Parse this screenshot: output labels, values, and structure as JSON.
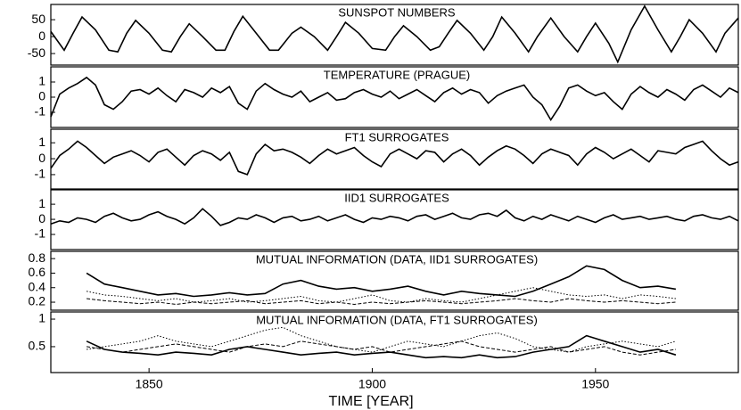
{
  "chart_data": [
    {
      "type": "line",
      "title": "SUNSPOT NUMBERS",
      "xlim": [
        1828,
        1982
      ],
      "ylim": [
        -84,
        95
      ],
      "yticks": [
        50,
        0,
        -50
      ],
      "x": [
        1828,
        1831,
        1833,
        1835,
        1838,
        1841,
        1843,
        1845,
        1847,
        1850,
        1853,
        1855,
        1857,
        1859,
        1862,
        1865,
        1867,
        1869,
        1871,
        1874,
        1877,
        1879,
        1882,
        1884,
        1887,
        1890,
        1892,
        1894,
        1897,
        1900,
        1903,
        1905,
        1907,
        1910,
        1913,
        1915,
        1917,
        1919,
        1922,
        1925,
        1927,
        1929,
        1932,
        1935,
        1937,
        1940,
        1943,
        1946,
        1948,
        1950,
        1953,
        1955,
        1958,
        1961,
        1964,
        1967,
        1969,
        1971,
        1974,
        1977,
        1979,
        1982
      ],
      "series": [
        {
          "color": "#000000",
          "style": "solid",
          "values": [
            15,
            -40,
            10,
            58,
            20,
            -40,
            -45,
            10,
            48,
            10,
            -40,
            -45,
            0,
            38,
            0,
            -40,
            -40,
            15,
            60,
            10,
            -40,
            -40,
            10,
            28,
            0,
            -40,
            0,
            42,
            10,
            -35,
            -40,
            0,
            32,
            0,
            -40,
            -30,
            10,
            48,
            10,
            -40,
            0,
            58,
            10,
            -45,
            0,
            55,
            0,
            -45,
            0,
            40,
            -20,
            -75,
            20,
            90,
            20,
            -45,
            0,
            50,
            10,
            -45,
            10,
            55
          ]
        }
      ]
    },
    {
      "type": "line",
      "title": "TEMPERATURE (PRAGUE)",
      "xlim": [
        1828,
        1982
      ],
      "ylim": [
        -2,
        2
      ],
      "yticks": [
        1,
        0,
        -1
      ],
      "x": [
        1828,
        1830,
        1832,
        1834,
        1836,
        1838,
        1840,
        1842,
        1844,
        1846,
        1848,
        1850,
        1852,
        1854,
        1856,
        1858,
        1860,
        1862,
        1864,
        1866,
        1868,
        1870,
        1872,
        1874,
        1876,
        1878,
        1880,
        1882,
        1884,
        1886,
        1888,
        1890,
        1892,
        1894,
        1896,
        1898,
        1900,
        1902,
        1904,
        1906,
        1908,
        1910,
        1912,
        1914,
        1916,
        1918,
        1920,
        1922,
        1924,
        1926,
        1928,
        1930,
        1932,
        1934,
        1936,
        1938,
        1940,
        1942,
        1944,
        1946,
        1948,
        1950,
        1952,
        1954,
        1956,
        1958,
        1960,
        1962,
        1964,
        1966,
        1968,
        1970,
        1972,
        1974,
        1976,
        1978,
        1980,
        1982
      ],
      "series": [
        {
          "color": "#000000",
          "style": "solid",
          "values": [
            -1.3,
            0.2,
            0.6,
            0.9,
            1.3,
            0.8,
            -0.5,
            -0.8,
            -0.3,
            0.4,
            0.5,
            0.2,
            0.6,
            0.1,
            -0.3,
            0.5,
            0.3,
            0.0,
            0.6,
            0.3,
            0.7,
            -0.4,
            -0.8,
            0.4,
            0.9,
            0.5,
            0.2,
            0.0,
            0.4,
            -0.3,
            0.0,
            0.3,
            -0.2,
            -0.1,
            0.3,
            0.5,
            0.2,
            0.0,
            0.4,
            -0.1,
            0.2,
            0.5,
            0.1,
            -0.3,
            0.3,
            0.6,
            0.2,
            0.5,
            0.3,
            -0.4,
            0.1,
            0.4,
            0.6,
            0.8,
            0.0,
            -0.5,
            -1.5,
            -0.6,
            0.6,
            0.8,
            0.4,
            0.1,
            0.3,
            -0.3,
            -0.8,
            0.2,
            0.7,
            0.3,
            0.0,
            0.5,
            0.2,
            -0.2,
            0.5,
            0.8,
            0.4,
            0.0,
            0.6,
            0.3
          ]
        }
      ]
    },
    {
      "type": "line",
      "title": "FT1 SURROGATES",
      "xlim": [
        1828,
        1982
      ],
      "ylim": [
        -1.9,
        1.85
      ],
      "yticks": [
        1,
        0,
        -1
      ],
      "x": [
        1828,
        1830,
        1832,
        1834,
        1836,
        1838,
        1840,
        1842,
        1844,
        1846,
        1848,
        1850,
        1852,
        1854,
        1856,
        1858,
        1860,
        1862,
        1864,
        1866,
        1868,
        1870,
        1872,
        1874,
        1876,
        1878,
        1880,
        1882,
        1884,
        1886,
        1888,
        1890,
        1892,
        1894,
        1896,
        1898,
        1900,
        1902,
        1904,
        1906,
        1908,
        1910,
        1912,
        1914,
        1916,
        1918,
        1920,
        1922,
        1924,
        1926,
        1928,
        1930,
        1932,
        1934,
        1936,
        1938,
        1940,
        1942,
        1944,
        1946,
        1948,
        1950,
        1952,
        1954,
        1956,
        1958,
        1960,
        1962,
        1964,
        1966,
        1968,
        1970,
        1972,
        1974,
        1976,
        1978,
        1980,
        1982
      ],
      "series": [
        {
          "color": "#000000",
          "style": "solid",
          "values": [
            -0.6,
            0.2,
            0.6,
            1.1,
            0.7,
            0.2,
            -0.3,
            0.1,
            0.3,
            0.5,
            0.2,
            -0.2,
            0.4,
            0.6,
            0.1,
            -0.4,
            0.2,
            0.5,
            0.3,
            -0.1,
            0.4,
            -0.8,
            -1.0,
            0.3,
            0.9,
            0.5,
            0.6,
            0.4,
            0.1,
            -0.3,
            0.2,
            0.6,
            0.3,
            0.5,
            0.7,
            0.2,
            -0.2,
            -0.5,
            0.3,
            0.6,
            0.3,
            0.0,
            0.5,
            0.4,
            -0.2,
            0.3,
            0.6,
            0.2,
            -0.4,
            0.1,
            0.5,
            0.8,
            0.6,
            0.2,
            -0.3,
            0.3,
            0.6,
            0.4,
            0.2,
            -0.4,
            0.3,
            0.7,
            0.4,
            0.0,
            0.3,
            0.6,
            0.2,
            -0.2,
            0.5,
            0.4,
            0.3,
            0.7,
            0.9,
            1.1,
            0.5,
            0.0,
            -0.4,
            -0.2
          ]
        }
      ]
    },
    {
      "type": "line",
      "title": "IID1 SURROGATES",
      "xlim": [
        1828,
        1982
      ],
      "ylim": [
        -2,
        1.95
      ],
      "yticks": [
        1,
        0,
        -1
      ],
      "x": [
        1828,
        1830,
        1832,
        1834,
        1836,
        1838,
        1840,
        1842,
        1844,
        1846,
        1848,
        1850,
        1852,
        1854,
        1856,
        1858,
        1860,
        1862,
        1864,
        1866,
        1868,
        1870,
        1872,
        1874,
        1876,
        1878,
        1880,
        1882,
        1884,
        1886,
        1888,
        1890,
        1892,
        1894,
        1896,
        1898,
        1900,
        1902,
        1904,
        1906,
        1908,
        1910,
        1912,
        1914,
        1916,
        1918,
        1920,
        1922,
        1924,
        1926,
        1928,
        1930,
        1932,
        1934,
        1936,
        1938,
        1940,
        1942,
        1944,
        1946,
        1948,
        1950,
        1952,
        1954,
        1956,
        1958,
        1960,
        1962,
        1964,
        1966,
        1968,
        1970,
        1972,
        1974,
        1976,
        1978,
        1980,
        1982
      ],
      "series": [
        {
          "color": "#000000",
          "style": "solid",
          "values": [
            -0.3,
            -0.1,
            -0.2,
            0.1,
            0.0,
            -0.2,
            0.2,
            0.4,
            0.1,
            -0.1,
            0.0,
            0.3,
            0.5,
            0.2,
            0.0,
            -0.3,
            0.1,
            0.7,
            0.2,
            -0.4,
            -0.2,
            0.1,
            0.0,
            0.3,
            0.1,
            -0.2,
            0.1,
            0.2,
            -0.1,
            0.0,
            0.2,
            -0.1,
            0.1,
            0.3,
            0.0,
            -0.2,
            0.1,
            0.0,
            0.2,
            0.1,
            -0.1,
            0.2,
            0.3,
            0.0,
            0.2,
            0.4,
            0.1,
            0.0,
            0.3,
            0.4,
            0.2,
            0.6,
            0.1,
            -0.1,
            0.2,
            0.0,
            0.3,
            0.1,
            -0.1,
            0.2,
            0.0,
            -0.2,
            0.1,
            0.3,
            0.0,
            0.1,
            0.2,
            0.0,
            0.1,
            0.2,
            0.0,
            -0.1,
            0.2,
            0.3,
            0.1,
            0.0,
            0.2,
            -0.1
          ]
        }
      ]
    },
    {
      "type": "line",
      "title": "MUTUAL INFORMATION (DATA, IID1 SURROGATES)",
      "xlim": [
        1828,
        1982
      ],
      "ylim": [
        0.09,
        0.9
      ],
      "yticks": [
        0.8,
        0.6,
        0.4,
        0.2
      ],
      "x": [
        1836,
        1840,
        1844,
        1848,
        1852,
        1856,
        1860,
        1864,
        1868,
        1872,
        1876,
        1880,
        1884,
        1888,
        1892,
        1896,
        1900,
        1904,
        1908,
        1912,
        1916,
        1920,
        1924,
        1928,
        1932,
        1936,
        1940,
        1944,
        1948,
        1952,
        1956,
        1960,
        1964,
        1968
      ],
      "series": [
        {
          "color": "#000000",
          "style": "solid",
          "values": [
            0.6,
            0.45,
            0.4,
            0.35,
            0.3,
            0.32,
            0.28,
            0.3,
            0.33,
            0.3,
            0.32,
            0.45,
            0.5,
            0.42,
            0.38,
            0.4,
            0.35,
            0.38,
            0.42,
            0.35,
            0.3,
            0.35,
            0.32,
            0.3,
            0.28,
            0.35,
            0.45,
            0.55,
            0.7,
            0.65,
            0.5,
            0.4,
            0.42,
            0.38
          ]
        },
        {
          "color": "#000000",
          "style": "dotted",
          "values": [
            0.35,
            0.3,
            0.28,
            0.25,
            0.22,
            0.25,
            0.2,
            0.22,
            0.25,
            0.2,
            0.22,
            0.25,
            0.28,
            0.22,
            0.2,
            0.25,
            0.3,
            0.22,
            0.2,
            0.25,
            0.22,
            0.2,
            0.25,
            0.3,
            0.35,
            0.4,
            0.35,
            0.3,
            0.28,
            0.3,
            0.25,
            0.3,
            0.28,
            0.25
          ]
        },
        {
          "color": "#000000",
          "style": "dashed",
          "values": [
            0.25,
            0.22,
            0.2,
            0.18,
            0.2,
            0.17,
            0.2,
            0.18,
            0.2,
            0.22,
            0.18,
            0.2,
            0.22,
            0.18,
            0.2,
            0.17,
            0.2,
            0.18,
            0.2,
            0.22,
            0.2,
            0.18,
            0.2,
            0.22,
            0.25,
            0.22,
            0.2,
            0.25,
            0.22,
            0.2,
            0.22,
            0.2,
            0.18,
            0.2
          ]
        }
      ]
    },
    {
      "type": "line",
      "title": "MUTUAL INFORMATION (DATA, FT1 SURROGATES)",
      "xlim": [
        1828,
        1982
      ],
      "ylim": [
        0.03,
        1.13
      ],
      "yticks": [
        1,
        0.5
      ],
      "xticks": [
        1850,
        1900,
        1950
      ],
      "xlabel": "TIME [YEAR]",
      "x": [
        1836,
        1840,
        1844,
        1848,
        1852,
        1856,
        1860,
        1864,
        1868,
        1872,
        1876,
        1880,
        1884,
        1888,
        1892,
        1896,
        1900,
        1904,
        1908,
        1912,
        1916,
        1920,
        1924,
        1928,
        1932,
        1936,
        1940,
        1944,
        1948,
        1952,
        1956,
        1960,
        1964,
        1968
      ],
      "series": [
        {
          "color": "#000000",
          "style": "solid",
          "values": [
            0.6,
            0.45,
            0.4,
            0.38,
            0.35,
            0.4,
            0.38,
            0.35,
            0.45,
            0.5,
            0.45,
            0.4,
            0.35,
            0.38,
            0.4,
            0.35,
            0.38,
            0.4,
            0.35,
            0.3,
            0.32,
            0.3,
            0.35,
            0.3,
            0.32,
            0.4,
            0.45,
            0.5,
            0.7,
            0.6,
            0.5,
            0.4,
            0.45,
            0.35
          ]
        },
        {
          "color": "#000000",
          "style": "dotted",
          "values": [
            0.45,
            0.5,
            0.55,
            0.6,
            0.7,
            0.6,
            0.55,
            0.5,
            0.6,
            0.7,
            0.8,
            0.85,
            0.7,
            0.6,
            0.5,
            0.45,
            0.4,
            0.5,
            0.6,
            0.55,
            0.5,
            0.6,
            0.7,
            0.75,
            0.65,
            0.5,
            0.45,
            0.4,
            0.5,
            0.55,
            0.6,
            0.55,
            0.5,
            0.6
          ]
        },
        {
          "color": "#000000",
          "style": "dashed",
          "values": [
            0.5,
            0.45,
            0.4,
            0.45,
            0.5,
            0.55,
            0.5,
            0.45,
            0.4,
            0.5,
            0.55,
            0.5,
            0.6,
            0.55,
            0.5,
            0.45,
            0.5,
            0.4,
            0.45,
            0.5,
            0.55,
            0.6,
            0.5,
            0.45,
            0.4,
            0.45,
            0.5,
            0.4,
            0.45,
            0.5,
            0.4,
            0.35,
            0.4,
            0.45
          ]
        }
      ]
    }
  ]
}
